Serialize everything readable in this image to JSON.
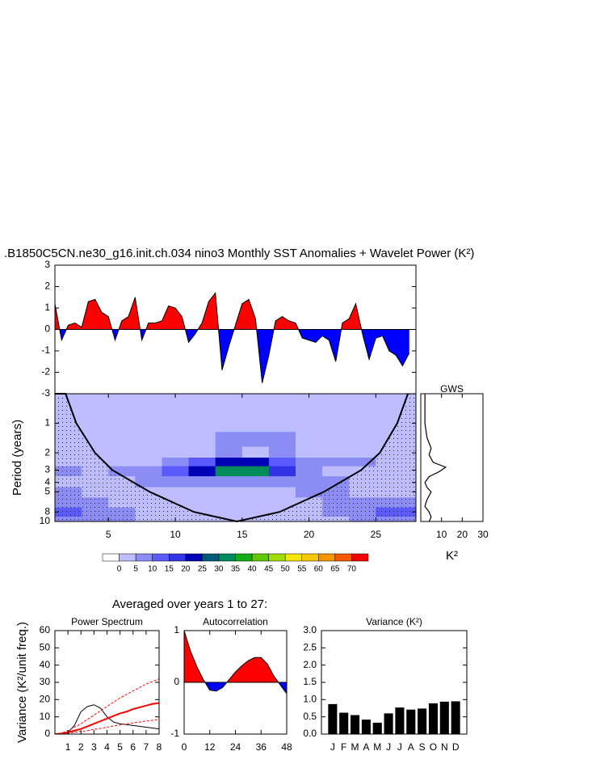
{
  "chart_data": [
    {
      "type": "area",
      "title": ".B1850C5CN.ne30_g16.init.ch.034 nino3 Monthly SST Anomalies + Wavelet Power (K²)",
      "x": [
        1,
        1.5,
        2,
        2.5,
        3,
        3.5,
        4,
        4.5,
        5,
        5.5,
        6,
        6.5,
        7,
        7.5,
        8,
        8.5,
        9,
        9.5,
        10,
        10.5,
        11,
        11.5,
        12,
        12.5,
        13,
        13.5,
        14,
        14.5,
        15,
        15.5,
        16,
        16.5,
        17,
        17.5,
        18,
        18.5,
        19,
        19.5,
        20,
        20.5,
        21,
        21.5,
        22,
        22.5,
        23,
        23.5,
        24,
        24.5,
        25,
        25.5,
        26,
        26.5,
        27,
        27.5
      ],
      "values": [
        1.2,
        -0.5,
        0.2,
        0.3,
        0.1,
        1.3,
        1.4,
        0.8,
        0.6,
        -0.5,
        0.4,
        0.6,
        1.5,
        -0.5,
        0.3,
        0.3,
        0.4,
        1.1,
        1.0,
        0.6,
        -0.6,
        -0.2,
        0.3,
        1.3,
        1.7,
        -1.9,
        -0.8,
        0.2,
        1.2,
        1.4,
        0.5,
        -2.5,
        -1.2,
        0.4,
        0.6,
        0.4,
        0.3,
        -0.4,
        -0.5,
        -0.6,
        -0.3,
        -0.5,
        -1.5,
        0.3,
        0.5,
        1.2,
        -0.2,
        -1.4,
        -0.4,
        -0.3,
        -1.0,
        -1.2,
        -1.7,
        -1.1
      ],
      "pos_color": "#ff0000",
      "neg_color": "#0000ff",
      "xlim": [
        1,
        28
      ],
      "ylim": [
        -3,
        3
      ],
      "yticks": [
        -3,
        -2,
        -1,
        0,
        1,
        2,
        3
      ]
    },
    {
      "type": "contour",
      "ylabel": "Period (years)",
      "x": [
        2,
        4,
        6,
        8,
        10,
        12,
        14,
        16,
        18,
        20,
        22,
        24,
        26
      ],
      "periods": [
        0.5,
        1,
        1.5,
        2,
        2.5,
        3,
        4,
        5,
        6.5,
        8,
        10
      ],
      "values": [
        [
          2,
          2,
          2,
          2,
          2,
          2,
          2,
          2,
          2,
          2,
          2,
          2,
          2
        ],
        [
          2,
          2,
          2,
          2,
          2,
          2,
          2,
          2,
          2,
          2,
          2,
          2,
          2
        ],
        [
          2,
          2,
          2,
          2,
          2,
          3,
          7,
          7,
          6,
          3,
          2,
          2,
          2
        ],
        [
          2,
          2,
          2,
          2,
          3,
          4,
          6,
          4,
          6,
          4,
          2,
          2,
          2
        ],
        [
          3,
          3,
          3,
          4,
          6,
          12,
          22,
          22,
          14,
          6,
          5,
          6,
          3
        ],
        [
          6,
          4,
          5,
          8,
          12,
          20,
          33,
          34,
          18,
          8,
          4,
          3,
          2
        ],
        [
          3,
          3,
          4,
          6,
          7,
          8,
          9,
          8,
          7,
          6,
          7,
          4,
          3
        ],
        [
          6,
          4,
          3,
          3,
          4,
          3,
          3,
          3,
          4,
          7,
          7,
          4,
          3
        ],
        [
          7,
          6,
          4,
          3,
          3,
          3,
          3,
          3,
          3,
          4,
          5,
          6,
          7
        ],
        [
          12,
          8,
          6,
          3,
          3,
          3,
          3,
          3,
          3,
          3,
          5,
          8,
          12
        ],
        [
          8,
          7,
          5,
          3,
          3,
          3,
          3,
          3,
          3,
          3,
          3,
          6,
          9
        ]
      ],
      "levels": [
        0,
        5,
        10,
        15,
        20,
        25,
        30,
        35,
        40,
        45,
        50,
        55,
        60,
        65,
        70
      ],
      "colors": [
        "#ffffff",
        "#bdbdff",
        "#8c8cf5",
        "#5a5aff",
        "#3232e6",
        "#0000b4",
        "#005a78",
        "#008c5a",
        "#14aa14",
        "#64c800",
        "#a0dc00",
        "#f5e600",
        "#f5c800",
        "#f59600",
        "#f55a00",
        "#f00000"
      ],
      "coi": {
        "x": [
          1,
          1.8,
          2.6,
          4.0,
          5.3,
          8.1,
          11.4,
          14.6,
          17.8,
          21.1,
          23.9,
          25.3,
          26.6,
          27.4
        ],
        "periods": [
          0.5,
          0.5,
          1,
          2,
          3,
          5,
          8,
          10,
          8,
          5,
          3,
          2,
          1,
          0.5
        ]
      },
      "xlim": [
        1,
        28
      ],
      "xticks": [
        5,
        10,
        15,
        20,
        25
      ],
      "ylim": [
        0.5,
        10
      ],
      "yticks": [
        1,
        2,
        3,
        4,
        5,
        8,
        10
      ],
      "log": true,
      "yreverse": true
    },
    {
      "type": "line",
      "orientation": "horizontal",
      "title": "GWS",
      "xlabel": "K²",
      "periods": [
        0.5,
        0.7,
        1,
        1.4,
        1.8,
        2.1,
        2.5,
        2.8,
        3.1,
        3.5,
        4,
        4.5,
        5,
        6,
        7,
        8,
        9,
        10
      ],
      "values": [
        2,
        2,
        2,
        3,
        5,
        4,
        6,
        12,
        9,
        4,
        2,
        3,
        5,
        3,
        2,
        4,
        5,
        4
      ],
      "color": "#000000",
      "xlim": [
        0,
        30
      ],
      "xticks": [
        10,
        20,
        30
      ],
      "ylim": [
        0.5,
        10
      ],
      "log": true,
      "yreverse": true
    },
    {
      "type": "line",
      "annotation": "Averaged over years 1 to 27:",
      "title": "Power Spectrum",
      "ylabel": "Variance (K²/unit freq.)",
      "x": [
        0,
        0.5,
        1,
        1.5,
        2,
        2.5,
        3,
        3.5,
        4,
        4.5,
        5,
        5.5,
        6,
        6.5,
        7,
        7.5,
        8
      ],
      "series": [
        {
          "color": "#000000",
          "values": [
            0,
            0.2,
            1,
            5,
            13,
            16,
            17,
            15,
            10,
            7,
            6,
            5.5,
            5,
            4.5,
            4,
            3.5,
            3
          ]
        },
        {
          "color": "#ff0000",
          "width": 2,
          "values": [
            0,
            0.3,
            1,
            2,
            3,
            4.5,
            6,
            7.5,
            9,
            10.5,
            12,
            13,
            14.5,
            15.5,
            16.5,
            17.5,
            18
          ]
        },
        {
          "color": "#ff0000",
          "dash": true,
          "values": [
            0,
            0.5,
            2,
            4,
            6,
            8.5,
            11,
            13.5,
            16,
            18.5,
            21,
            23,
            25,
            27,
            29,
            30.5,
            32
          ]
        },
        {
          "color": "#ff0000",
          "dash": true,
          "values": [
            0,
            0.1,
            0.5,
            1,
            1.5,
            2,
            2.7,
            3.3,
            4,
            4.7,
            5.3,
            5.9,
            6.5,
            7,
            7.5,
            8,
            8.5
          ]
        }
      ],
      "xlim": [
        0,
        8
      ],
      "xticks": [
        1,
        2,
        3,
        4,
        5,
        6,
        7,
        8
      ],
      "ylim": [
        0,
        60
      ],
      "yticks": [
        0,
        10,
        20,
        30,
        40,
        50,
        60
      ]
    },
    {
      "type": "area",
      "title": "Autocorrelation",
      "x": [
        0,
        3,
        6,
        9,
        12,
        15,
        18,
        21,
        24,
        27,
        30,
        33,
        36,
        39,
        42,
        45,
        48
      ],
      "values": [
        1,
        0.6,
        0.3,
        0.05,
        -0.15,
        -0.17,
        -0.1,
        0.05,
        0.2,
        0.32,
        0.42,
        0.48,
        0.48,
        0.35,
        0.12,
        -0.05,
        -0.22
      ],
      "pos_color": "#ff0000",
      "neg_color": "#0000ff",
      "xlim": [
        0,
        48
      ],
      "xticks": [
        0,
        12,
        24,
        36,
        48
      ],
      "ylim": [
        -1,
        1
      ],
      "yticks": [
        -1,
        0,
        1
      ]
    },
    {
      "type": "bar",
      "title": "Variance (K²)",
      "categories": [
        "J",
        "F",
        "M",
        "A",
        "M",
        "J",
        "J",
        "A",
        "S",
        "O",
        "N",
        "D"
      ],
      "values": [
        0.87,
        0.62,
        0.55,
        0.42,
        0.33,
        0.6,
        0.77,
        0.71,
        0.74,
        0.89,
        0.94,
        0.95
      ],
      "color": "#000000",
      "ylim": [
        0,
        3
      ],
      "yticks": [
        {
          "value": 0,
          "label": "0.0"
        },
        0.5,
        {
          "value": 1,
          "label": "1.0"
        },
        1.5,
        {
          "value": 2,
          "label": "2.0"
        },
        2.5,
        {
          "value": 3,
          "label": "3.0"
        }
      ]
    }
  ]
}
